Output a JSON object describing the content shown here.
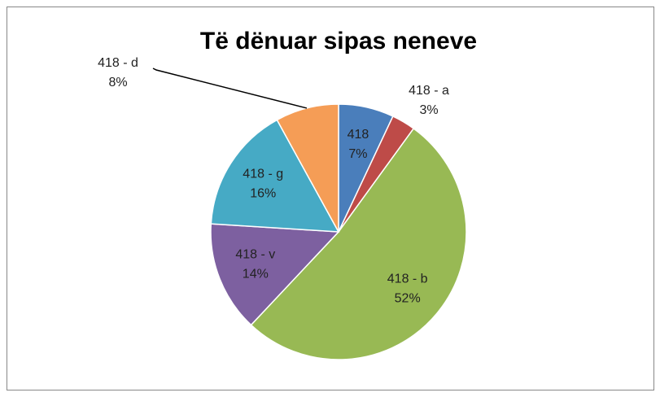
{
  "chart_data": {
    "type": "pie",
    "title": "Të dënuar sipas neneve",
    "categories": [
      "418",
      "418 - a",
      "418 - b",
      "418 - v",
      "418 - g",
      "418 - d"
    ],
    "values": [
      7,
      3,
      52,
      14,
      16,
      8
    ],
    "value_labels": [
      "7%",
      "3%",
      "52%",
      "14%",
      "16%",
      "8%"
    ],
    "colors": [
      "#4a7ebb",
      "#be4b48",
      "#98b954",
      "#7d60a0",
      "#46aac5",
      "#f59d56"
    ]
  }
}
